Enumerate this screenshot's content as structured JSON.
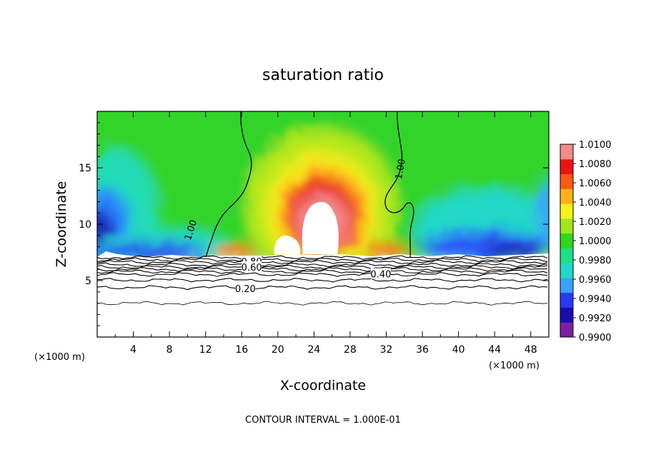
{
  "chart_data": {
    "type": "heatmap",
    "title": "saturation ratio",
    "xlabel": "X-coordinate",
    "ylabel": "Z-coordinate",
    "x_unit_label": "(×1000 m)",
    "z_unit_label": "(×1000 m)",
    "xlim": [
      0,
      50
    ],
    "ylim": [
      0,
      20
    ],
    "x_ticks": [
      4,
      8,
      12,
      16,
      20,
      24,
      28,
      32,
      36,
      40,
      44,
      48
    ],
    "x_tick_labels": [
      "4",
      "8",
      "12",
      "16",
      "20",
      "24",
      "28",
      "32",
      "36",
      "40",
      "44",
      "48"
    ],
    "y_ticks": [
      5,
      10,
      15
    ],
    "y_tick_labels": [
      "5",
      "10",
      "15"
    ],
    "colorbar": {
      "min": 0.99,
      "max": 1.01,
      "tick_values": [
        1.01,
        1.008,
        1.006,
        1.004,
        1.002,
        1.0,
        0.998,
        0.996,
        0.994,
        0.992,
        0.99
      ],
      "tick_labels": [
        "1.0100",
        "1.0080",
        "1.0060",
        "1.0040",
        "1.0020",
        "1.0000",
        "0.9980",
        "0.9960",
        "0.9940",
        "0.9920",
        "0.9900"
      ],
      "colors": [
        "#7d1fa0",
        "#1a0ab0",
        "#2a3af0",
        "#3aa0ff",
        "#22d8c8",
        "#1ee088",
        "#2ed61e",
        "#a0e61e",
        "#f5f01e",
        "#ffb11a",
        "#ff5a14",
        "#e81414",
        "#f58a8a"
      ]
    },
    "cloud_base_z": 7.3,
    "contour_interval": "CONTOUR INTERVAL = 1.000E-01",
    "contour_labels": [
      {
        "text": "1.00",
        "x": 10.3,
        "z": 9.5,
        "angle": -72
      },
      {
        "text": "1.00",
        "x": 33.5,
        "z": 14.9,
        "angle": -80
      },
      {
        "text": "0.80",
        "x": 17.1,
        "z": 6.7,
        "angle": 0
      },
      {
        "text": "0.60",
        "x": 17.1,
        "z": 6.2,
        "angle": 0
      },
      {
        "text": "0.40",
        "x": 31.4,
        "z": 5.6,
        "angle": 0
      },
      {
        "text": "0.20",
        "x": 16.4,
        "z": 4.3,
        "angle": 0
      }
    ],
    "contour_lines_below_cloud_z": [
      7.05,
      6.85,
      6.65,
      6.4,
      6.2,
      6.0,
      5.8,
      5.55,
      5.05,
      4.4,
      3.0
    ]
  }
}
